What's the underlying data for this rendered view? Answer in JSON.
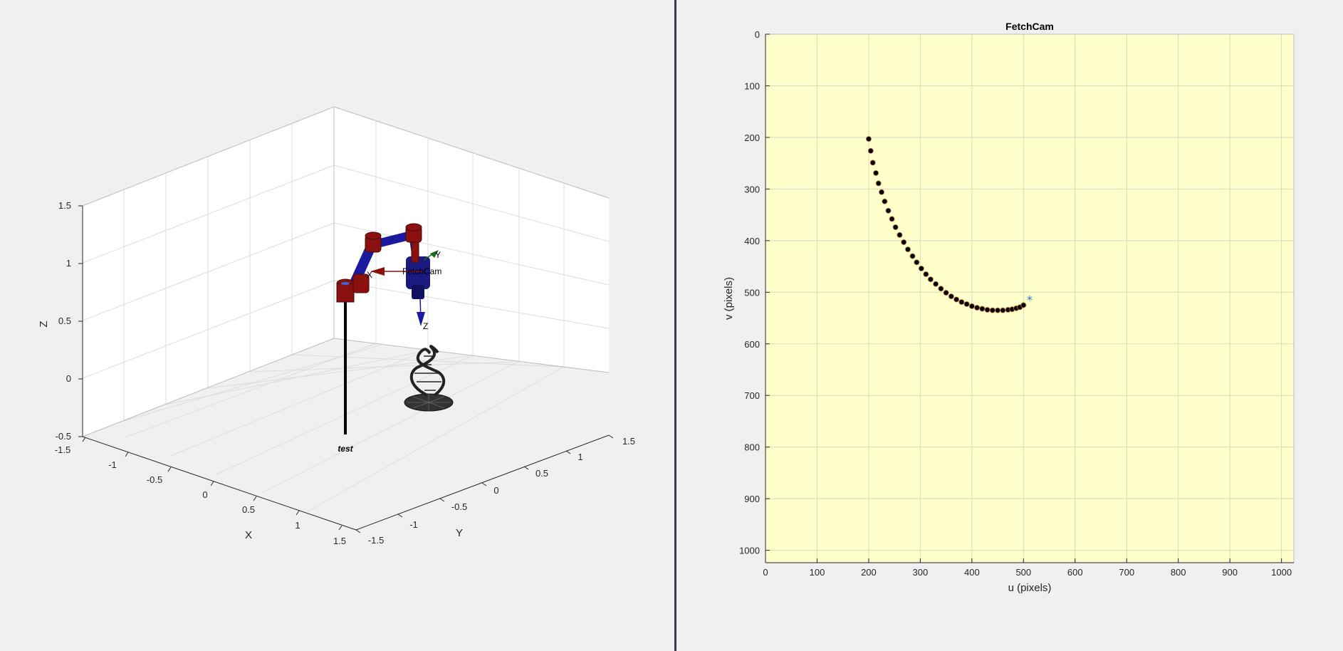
{
  "left_plot": {
    "x_label": "X",
    "y_label": "Y",
    "z_label": "Z",
    "x_ticks": [
      "-1.5",
      "-1",
      "-0.5",
      "0",
      "0.5",
      "1",
      "1.5"
    ],
    "y_ticks": [
      "-1.5",
      "-1",
      "-0.5",
      "0",
      "0.5",
      "1",
      "1.5"
    ],
    "z_ticks": [
      "-0.5",
      "0",
      "0.5",
      "1",
      "1.5"
    ],
    "robot_name": "test",
    "camera_label": "FetchCam",
    "frame_y_label": "Y",
    "frame_z_label": "Z",
    "frame_x_label": "X",
    "colors": {
      "link": "#1a1aa0",
      "joint": "#8b1010",
      "grid": "#dcdcdc"
    }
  },
  "right_plot": {
    "title": "FetchCam",
    "x_label": "u (pixels)",
    "y_label": "v (pixels)",
    "x_ticks": [
      "0",
      "100",
      "200",
      "300",
      "400",
      "500",
      "600",
      "700",
      "800",
      "900",
      "1000"
    ],
    "y_ticks": [
      "0",
      "100",
      "200",
      "300",
      "400",
      "500",
      "600",
      "700",
      "800",
      "900",
      "1000"
    ],
    "background_color": "#ffffcc",
    "star_marker": "*"
  },
  "chart_data": {
    "type": "scatter",
    "title": "FetchCam",
    "xlabel": "u (pixels)",
    "ylabel": "v (pixels)",
    "xlim": [
      0,
      1024
    ],
    "ylim": [
      0,
      1024
    ],
    "y_reversed": true,
    "grid": true,
    "series": [
      {
        "marker": "circle",
        "x": [
          200,
          204,
          208,
          214,
          219,
          225,
          231,
          238,
          245,
          252,
          260,
          268,
          276,
          285,
          293,
          302,
          311,
          320,
          330,
          340,
          350,
          360,
          370,
          380,
          390,
          400,
          410,
          420,
          430,
          440,
          450,
          460,
          470,
          478,
          486,
          493,
          500
        ],
        "y": [
          203,
          226,
          249,
          269,
          289,
          306,
          324,
          342,
          358,
          374,
          389,
          403,
          417,
          430,
          442,
          454,
          465,
          475,
          484,
          493,
          501,
          508,
          514,
          519,
          523,
          527,
          530,
          532,
          534,
          535,
          535,
          535,
          534,
          533,
          531,
          529,
          525
        ]
      },
      {
        "marker": "star",
        "x": [
          512
        ],
        "y": [
          511
        ]
      }
    ]
  }
}
